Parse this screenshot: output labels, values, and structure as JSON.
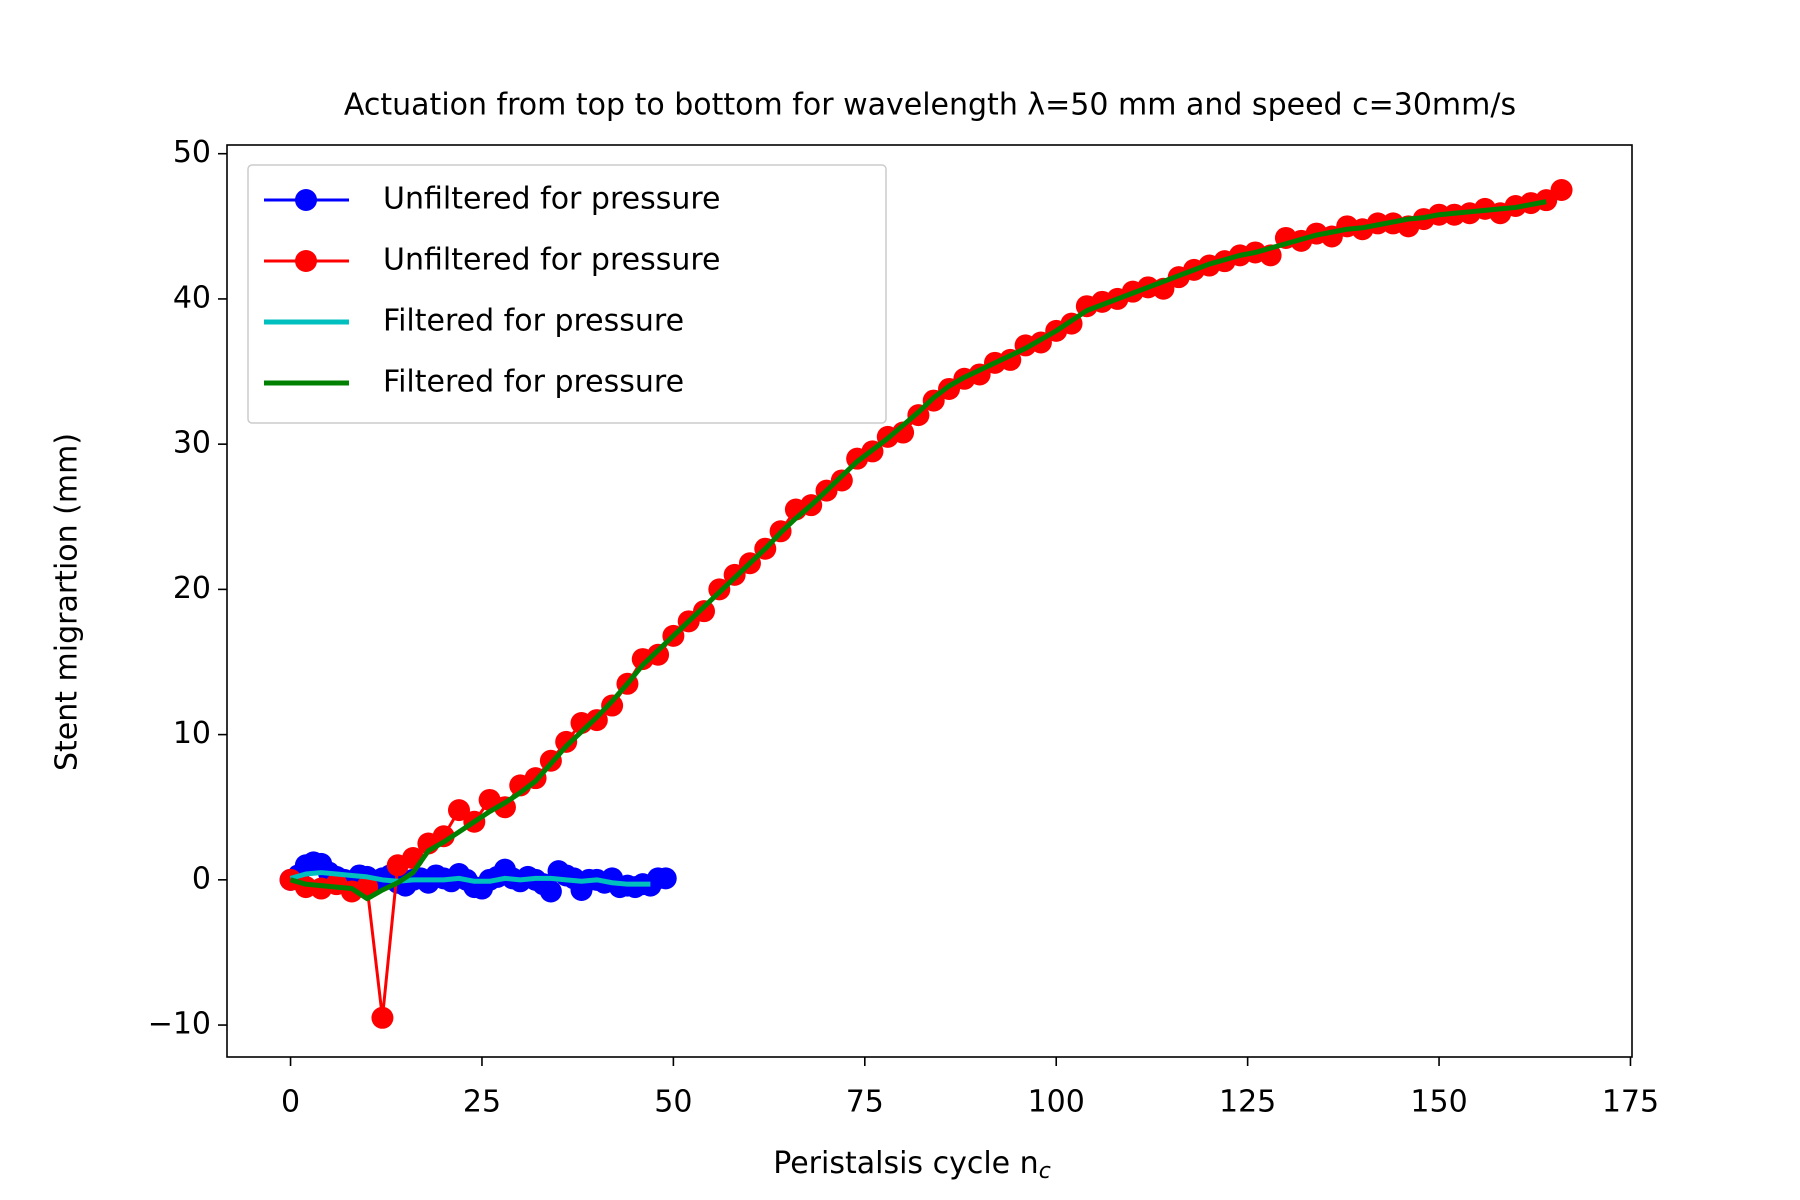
{
  "chart_data": {
    "type": "line",
    "title": "Actuation from top to bottom for wavelength λ=50 mm and speed c=30mm/s",
    "xlabel": "Peristalsis cycle n",
    "xlabel_subscript": "c",
    "ylabel": "Stent migrartion (mm)",
    "xlim": [
      -8.3,
      175.2
    ],
    "ylim": [
      -12.2,
      50.6
    ],
    "xticks": [
      0,
      25,
      50,
      75,
      100,
      125,
      150,
      175
    ],
    "yticks": [
      {
        "value": -10,
        "label": "−10"
      },
      0,
      10,
      20,
      30,
      40,
      50
    ],
    "legend": "upper left",
    "series": [
      {
        "name": "Unfiltered for pressure",
        "color": "#0000ff",
        "marker": true,
        "x": [
          0,
          1,
          2,
          3,
          4,
          5,
          6,
          7,
          8,
          9,
          10,
          11,
          12,
          13,
          14,
          15,
          16,
          17,
          18,
          19,
          20,
          21,
          22,
          23,
          24,
          25,
          26,
          27,
          28,
          29,
          30,
          31,
          32,
          33,
          34,
          35,
          36,
          37,
          38,
          39,
          40,
          41,
          42,
          43,
          44,
          45,
          46,
          47,
          48,
          49
        ],
        "values": [
          0,
          0.3,
          1.0,
          1.2,
          1.1,
          0.5,
          0.2,
          0,
          -0.2,
          0.3,
          0.2,
          -0.3,
          0.1,
          0.3,
          -0.2,
          -0.4,
          0,
          0.1,
          -0.2,
          0.3,
          0.1,
          -0.1,
          0.4,
          0,
          -0.5,
          -0.6,
          0,
          0.2,
          0.7,
          0.1,
          -0.1,
          0.2,
          0,
          -0.3,
          -0.8,
          0.6,
          0.3,
          0.1,
          -0.7,
          0,
          0,
          -0.2,
          0.1,
          -0.5,
          -0.4,
          -0.5,
          -0.3,
          -0.4,
          0.1,
          0.1
        ]
      },
      {
        "name": "Unfiltered for pressure",
        "color": "#ff0000",
        "marker": true,
        "x": [
          0,
          2,
          4,
          6,
          8,
          10,
          12,
          14,
          16,
          18,
          20,
          22,
          24,
          26,
          28,
          30,
          32,
          34,
          36,
          38,
          40,
          42,
          44,
          46,
          48,
          50,
          52,
          54,
          56,
          58,
          60,
          62,
          64,
          66,
          68,
          70,
          72,
          74,
          76,
          78,
          80,
          82,
          84,
          86,
          88,
          90,
          92,
          94,
          96,
          98,
          100,
          102,
          104,
          106,
          108,
          110,
          112,
          114,
          116,
          118,
          120,
          122,
          124,
          126,
          128,
          130,
          132,
          134,
          136,
          138,
          140,
          142,
          144,
          146,
          148,
          150,
          152,
          154,
          156,
          158,
          160,
          162,
          164,
          166
        ],
        "values": [
          0,
          -0.5,
          -0.6,
          -0.3,
          -0.8,
          -0.5,
          -9.5,
          1.0,
          1.5,
          2.5,
          3.0,
          4.8,
          4.0,
          5.5,
          5.0,
          6.5,
          7.0,
          8.2,
          9.5,
          10.8,
          11.0,
          12.0,
          13.5,
          15.2,
          15.5,
          16.8,
          17.8,
          18.5,
          20.0,
          21.0,
          21.8,
          22.8,
          24.0,
          25.5,
          25.8,
          26.8,
          27.5,
          29.0,
          29.5,
          30.5,
          30.8,
          32.0,
          33.0,
          33.8,
          34.5,
          34.8,
          35.6,
          35.8,
          36.8,
          37.0,
          37.8,
          38.3,
          39.5,
          39.8,
          40.0,
          40.5,
          40.8,
          40.7,
          41.5,
          42.0,
          42.3,
          42.6,
          43.0,
          43.2,
          43.0,
          44.2,
          44.0,
          44.5,
          44.3,
          45.0,
          44.8,
          45.2,
          45.2,
          45.0,
          45.5,
          45.8,
          45.8,
          45.9,
          46.2,
          45.9,
          46.4,
          46.6,
          46.8,
          47.5
        ]
      },
      {
        "name": "Filtered for pressure",
        "color": "#00bfbf",
        "marker": false,
        "x": [
          0,
          2,
          4,
          6,
          8,
          10,
          12,
          14,
          16,
          18,
          20,
          22,
          24,
          26,
          28,
          30,
          32,
          34,
          36,
          38,
          40,
          42,
          44,
          46,
          47
        ],
        "values": [
          0.1,
          0.4,
          0.5,
          0.4,
          0.3,
          0.2,
          0,
          -0.1,
          0,
          0,
          0,
          0.1,
          -0.1,
          -0.1,
          0.1,
          0,
          0.1,
          0.1,
          0,
          -0.1,
          0,
          -0.2,
          -0.3,
          -0.3,
          -0.3
        ]
      },
      {
        "name": "Filtered for pressure",
        "color": "#008000",
        "marker": false,
        "x": [
          0,
          2,
          4,
          6,
          8,
          10,
          12,
          14,
          16,
          18,
          20,
          22,
          24,
          26,
          28,
          30,
          32,
          34,
          36,
          38,
          40,
          42,
          44,
          46,
          48,
          50,
          52,
          54,
          56,
          58,
          60,
          62,
          64,
          66,
          68,
          70,
          72,
          74,
          76,
          78,
          80,
          82,
          84,
          86,
          88,
          90,
          92,
          94,
          96,
          98,
          100,
          102,
          104,
          106,
          108,
          110,
          112,
          114,
          116,
          118,
          120,
          122,
          124,
          126,
          128,
          130,
          132,
          134,
          136,
          138,
          140,
          142,
          144,
          146,
          148,
          150,
          152,
          154,
          156,
          158,
          160,
          162,
          164
        ],
        "values": [
          0,
          -0.3,
          -0.4,
          -0.5,
          -0.6,
          -1.3,
          -0.7,
          -0.2,
          0.5,
          2.0,
          2.6,
          3.3,
          4.0,
          4.7,
          5.3,
          6.0,
          6.8,
          8.0,
          9.2,
          10.2,
          11.2,
          12.3,
          13.5,
          14.8,
          15.8,
          16.8,
          17.8,
          18.8,
          19.8,
          20.8,
          21.8,
          22.8,
          23.9,
          24.9,
          25.8,
          26.8,
          27.8,
          28.8,
          29.6,
          30.4,
          31.3,
          32.2,
          33.2,
          34.0,
          34.6,
          35.1,
          35.6,
          36.1,
          36.6,
          37.2,
          37.8,
          38.5,
          39.2,
          39.6,
          40.0,
          40.4,
          40.8,
          41.2,
          41.6,
          42.0,
          42.4,
          42.7,
          43.0,
          43.2,
          43.5,
          43.8,
          44.1,
          44.4,
          44.6,
          44.8,
          44.9,
          45.1,
          45.3,
          45.5,
          45.6,
          45.8,
          45.9,
          46.0,
          46.1,
          46.2,
          46.3,
          46.5,
          46.7
        ]
      }
    ]
  }
}
